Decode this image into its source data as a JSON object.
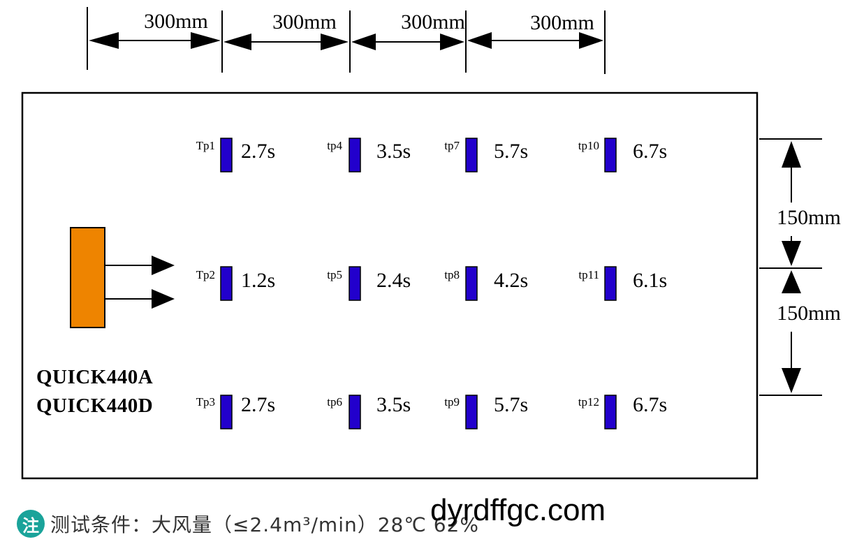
{
  "dimensions": {
    "horizontal": [
      "300mm",
      "300mm",
      "300mm",
      "300mm"
    ],
    "vertical": [
      "150mm",
      "150mm"
    ]
  },
  "test_points": [
    {
      "label": "Tp1",
      "time": "2.7s"
    },
    {
      "label": "tp4",
      "time": "3.5s"
    },
    {
      "label": "tp7",
      "time": "5.7s"
    },
    {
      "label": "tp10",
      "time": "6.7s"
    },
    {
      "label": "Tp2",
      "time": "1.2s"
    },
    {
      "label": "tp5",
      "time": "2.4s"
    },
    {
      "label": "tp8",
      "time": "4.2s"
    },
    {
      "label": "tp11",
      "time": "6.1s"
    },
    {
      "label": "Tp3",
      "time": "2.7s"
    },
    {
      "label": "tp6",
      "time": "3.5s"
    },
    {
      "label": "tp9",
      "time": "5.7s"
    },
    {
      "label": "tp12",
      "time": "6.7s"
    }
  ],
  "models": [
    "QUICK440A",
    "QUICK440D"
  ],
  "note": {
    "icon_char": "注",
    "text": "测试条件：大风量（≤2.4m³/min）28℃ 62%"
  },
  "watermark": "dyrdffgc.com",
  "colors": {
    "sensor": "#2200cc",
    "nozzle": "#ee8400",
    "note_icon": "#1aa39a"
  }
}
